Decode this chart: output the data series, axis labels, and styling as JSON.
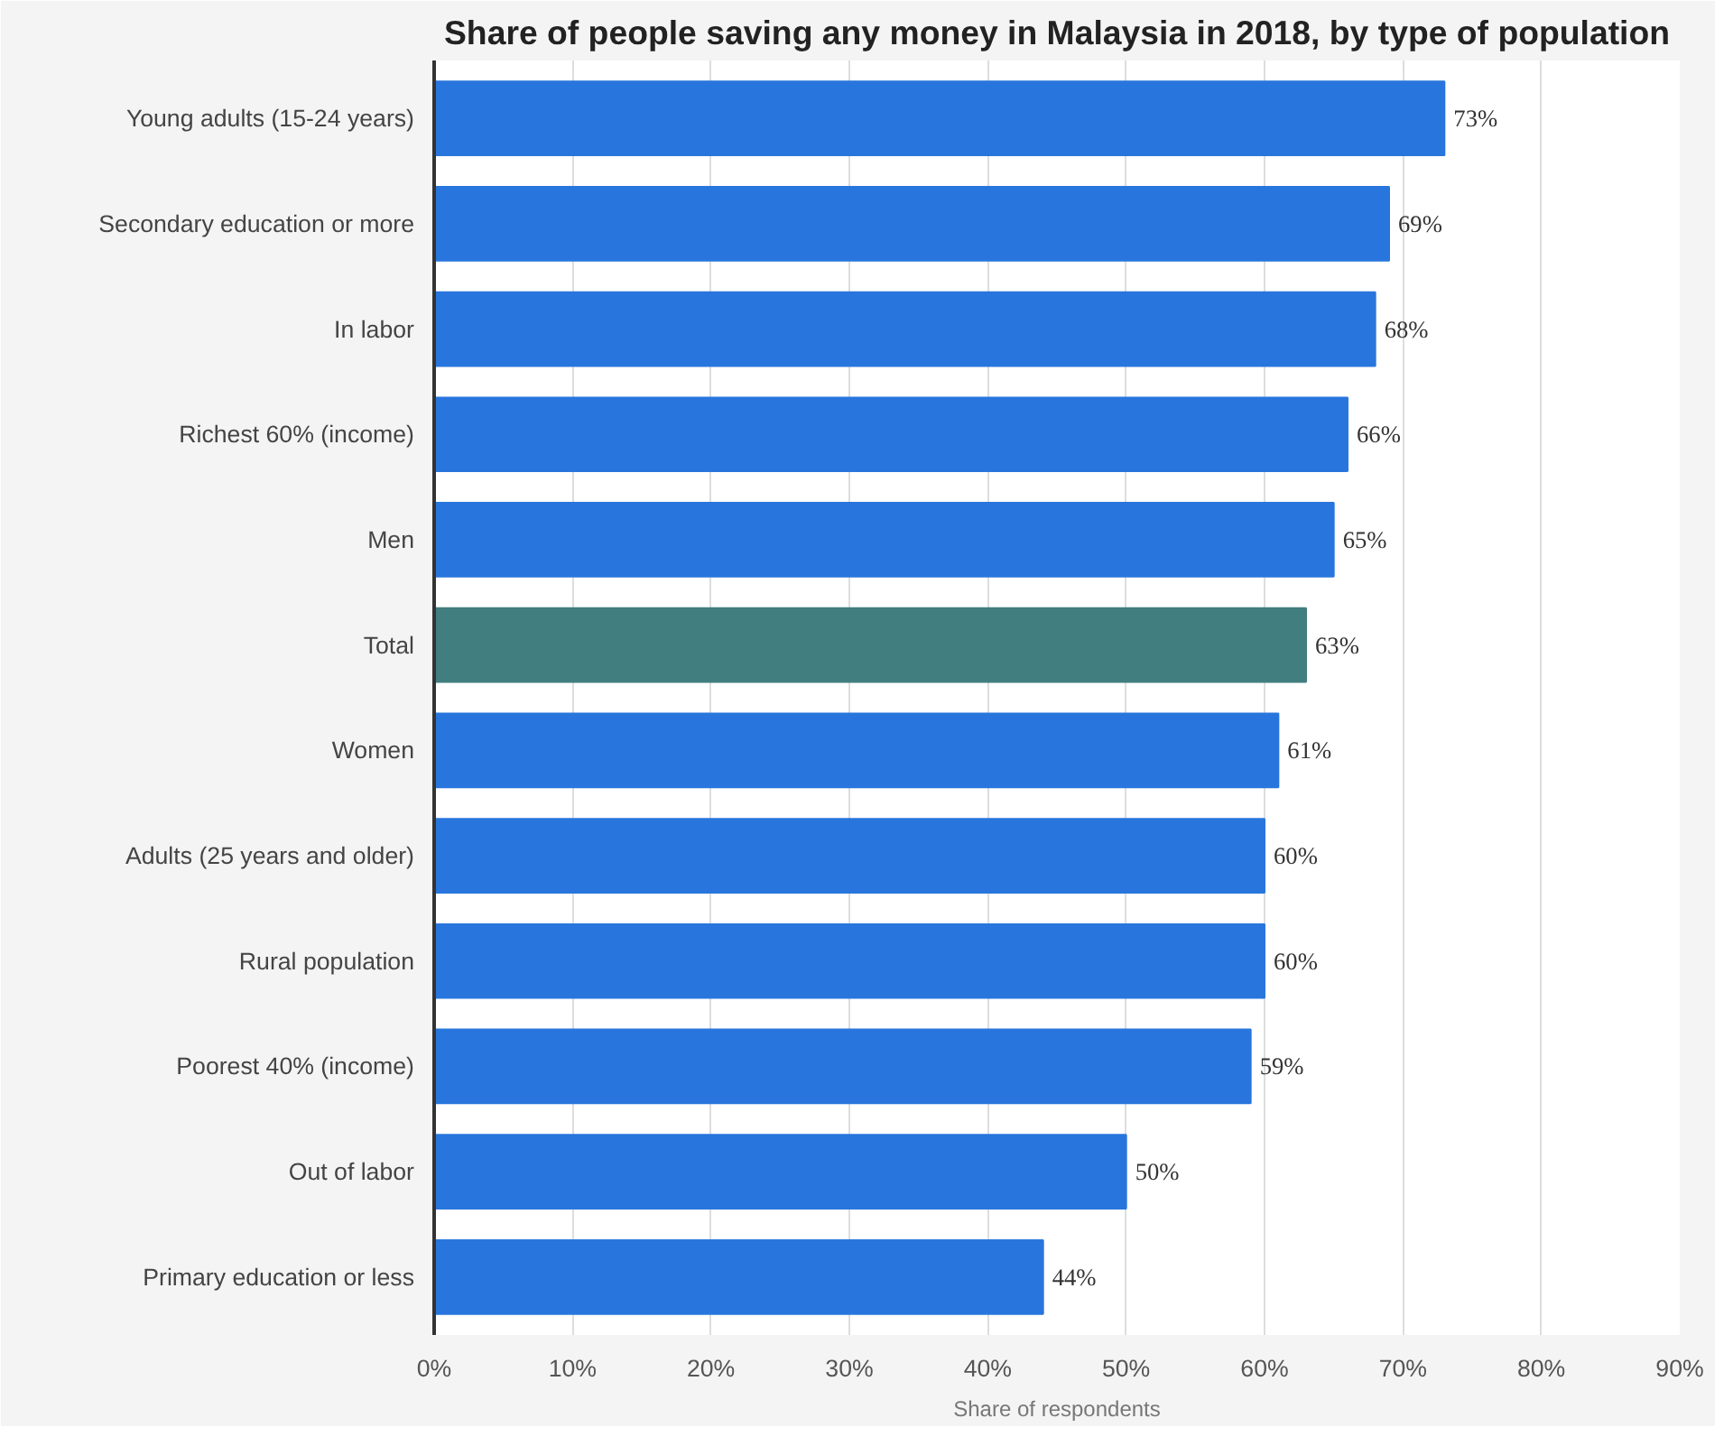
{
  "chart_data": {
    "type": "bar",
    "orientation": "horizontal",
    "title": "Share of people saving any money in Malaysia in 2018, by type of population",
    "xlabel": "Share of respondents",
    "categories": [
      "Young adults (15-24 years)",
      "Secondary education or more",
      "In labor",
      "Richest 60% (income)",
      "Men",
      "Total",
      "Women",
      "Adults (25 years and older)",
      "Rural population",
      "Poorest 40% (income)",
      "Out of labor",
      "Primary education or less"
    ],
    "values": [
      73,
      69,
      68,
      66,
      65,
      63,
      61,
      60,
      60,
      59,
      50,
      44
    ],
    "colors": [
      "#2876dd",
      "#2876dd",
      "#2876dd",
      "#2876dd",
      "#2876dd",
      "#417e7f",
      "#2876dd",
      "#2876dd",
      "#2876dd",
      "#2876dd",
      "#2876dd",
      "#2876dd"
    ],
    "value_labels": [
      "73%",
      "69%",
      "68%",
      "66%",
      "65%",
      "63%",
      "61%",
      "60%",
      "60%",
      "59%",
      "50%",
      "44%"
    ],
    "xlim": [
      0,
      90
    ],
    "xticks": [
      {
        "value": 0,
        "label": "0%"
      },
      {
        "value": 10,
        "label": "10%"
      },
      {
        "value": 20,
        "label": "20%"
      },
      {
        "value": 30,
        "label": "30%"
      },
      {
        "value": 40,
        "label": "40%"
      },
      {
        "value": 50,
        "label": "50%"
      },
      {
        "value": 60,
        "label": "60%"
      },
      {
        "value": 70,
        "label": "70%"
      },
      {
        "value": 80,
        "label": "80%"
      },
      {
        "value": 90,
        "label": "90%"
      }
    ],
    "grid": "x"
  }
}
